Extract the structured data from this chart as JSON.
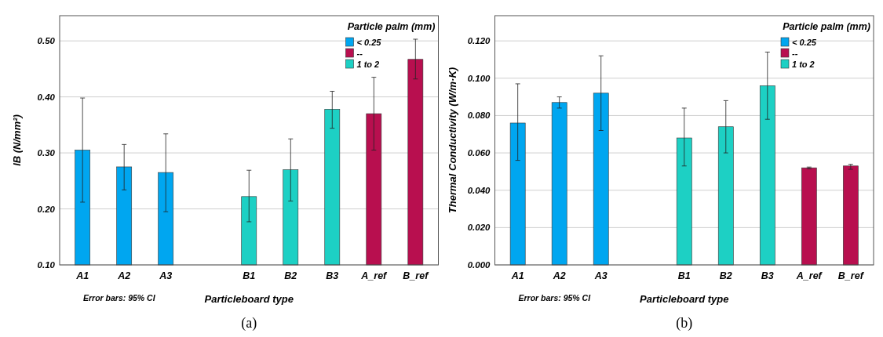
{
  "chart_data": [
    {
      "type": "bar",
      "ylabel": "IB (N/mm²)",
      "xlabel": "Particleboard  type",
      "legend_title": "Particle palm (mm)",
      "legend": "top right",
      "grid": "y",
      "categories": [
        "A1",
        "A2",
        "A3",
        null,
        "B1",
        "B2",
        "B3",
        "A_ref",
        "B_ref"
      ],
      "ylim": [
        0.1,
        0.545
      ],
      "yticks": [
        {
          "value": 0.1,
          "label": "0.10"
        },
        {
          "value": 0.2,
          "label": "0.20"
        },
        {
          "value": 0.3,
          "label": "0.30"
        },
        {
          "value": 0.4,
          "label": "0.40"
        },
        {
          "value": 0.5,
          "label": "0.50"
        }
      ],
      "series": [
        {
          "name": "< 0.25",
          "color": "#00a6f0",
          "values": [
            0.305,
            0.275,
            0.265,
            null,
            null,
            null,
            null,
            null,
            null
          ],
          "errors": [
            [
              0.212,
              0.398
            ],
            [
              0.234,
              0.315
            ],
            [
              0.195,
              0.334
            ],
            null,
            null,
            null,
            null,
            null,
            null
          ]
        },
        {
          "name": "--",
          "color": "#b80f4f",
          "values": [
            null,
            null,
            null,
            null,
            null,
            null,
            null,
            0.37,
            0.467
          ],
          "errors": [
            null,
            null,
            null,
            null,
            null,
            null,
            null,
            [
              0.305,
              0.435
            ],
            [
              0.432,
              0.503
            ]
          ]
        },
        {
          "name": "1 to 2",
          "color": "#1dd0c4",
          "values": [
            null,
            null,
            null,
            null,
            0.222,
            0.27,
            0.378,
            null,
            null
          ],
          "errors": [
            null,
            null,
            null,
            null,
            [
              0.177,
              0.269
            ],
            [
              0.214,
              0.325
            ],
            [
              0.344,
              0.41
            ],
            null,
            null
          ]
        }
      ],
      "annotations": [
        "Error bars: 95% CI",
        "(a)"
      ]
    },
    {
      "type": "bar",
      "ylabel": "Thermal Conductivity (W/m·K)",
      "xlabel": "Particleboard  type",
      "legend_title": "Particle palm (mm)",
      "legend": "top right",
      "grid": "y",
      "categories": [
        "A1",
        "A2",
        "A3",
        null,
        "B1",
        "B2",
        "B3",
        "A_ref",
        "B_ref"
      ],
      "ylim": [
        0,
        0.1335
      ],
      "yticks": [
        {
          "value": 0,
          "label": "0.000"
        },
        {
          "value": 0.02,
          "label": "0.020"
        },
        {
          "value": 0.04,
          "label": "0.040"
        },
        {
          "value": 0.06,
          "label": "0.060"
        },
        {
          "value": 0.08,
          "label": "0.080"
        },
        {
          "value": 0.1,
          "label": "0.100"
        },
        {
          "value": 0.12,
          "label": "0.120"
        }
      ],
      "series": [
        {
          "name": "< 0.25",
          "color": "#00a6f0",
          "values": [
            0.076,
            0.087,
            0.092,
            null,
            null,
            null,
            null,
            null,
            null
          ],
          "errors": [
            [
              0.056,
              0.097
            ],
            [
              0.084,
              0.09
            ],
            [
              0.072,
              0.112
            ],
            null,
            null,
            null,
            null,
            null,
            null
          ]
        },
        {
          "name": "--",
          "color": "#b80f4f",
          "values": [
            null,
            null,
            null,
            null,
            null,
            null,
            null,
            0.052,
            0.053
          ],
          "errors": [
            null,
            null,
            null,
            null,
            null,
            null,
            null,
            [
              0.0515,
              0.0524
            ],
            [
              0.0512,
              0.0539
            ]
          ]
        },
        {
          "name": "1 to 2",
          "color": "#1dd0c4",
          "values": [
            null,
            null,
            null,
            null,
            0.068,
            0.074,
            0.096,
            null,
            null
          ],
          "errors": [
            null,
            null,
            null,
            null,
            [
              0.053,
              0.084
            ],
            [
              0.06,
              0.088
            ],
            [
              0.078,
              0.114
            ],
            null,
            null
          ]
        }
      ],
      "annotations": [
        "Error bars: 95% CI",
        "(b)"
      ]
    }
  ]
}
